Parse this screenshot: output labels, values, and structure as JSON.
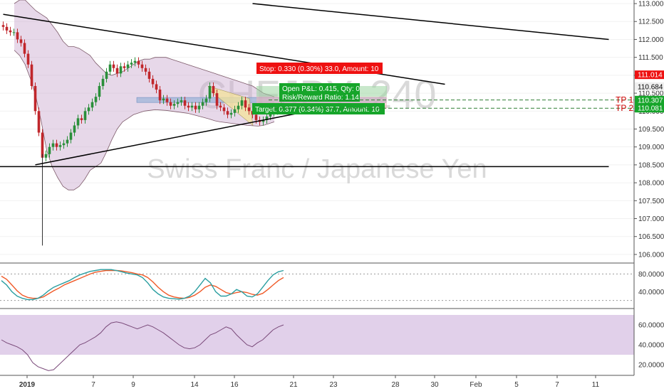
{
  "watermark": {
    "symbol": "CHFJPY",
    "interval": "240",
    "description": "Swiss Franc / Japanese Yen"
  },
  "colors": {
    "up": "#2a8f3a",
    "down": "#c0262b",
    "band_fill": "#c9a9cf",
    "band_line": "#7d5a6a",
    "trend": "#000000",
    "stoch_k": "#2a9ea0",
    "stoch_d": "#f05a28",
    "rsi_line": "#7a4a7a",
    "rsi_bg": "#dcc8e6",
    "stop_red": "#ee1111",
    "target_green": "#16a52a",
    "tp_line": "#2e7d32",
    "tp_text": "#cc0000",
    "pattern_yellow": "#f4e39a",
    "zone_blue": "#9fb6d8"
  },
  "chart_data": [
    {
      "type": "candlestick",
      "title": "",
      "price_axis": {
        "ylim": [
          105.8,
          113.1
        ],
        "ticks": [
          "113.000",
          "112.500",
          "112.000",
          "111.500",
          "111.000",
          "110.500",
          "110.000",
          "109.500",
          "109.000",
          "108.500",
          "108.000",
          "107.500",
          "107.000",
          "106.500",
          "106.000"
        ],
        "markers": [
          {
            "label": "111.014",
            "value": 111.014,
            "color": "#ee1111"
          },
          {
            "label": "110.684",
            "value": 110.684,
            "color": "#f0f0f0",
            "text_color": "#000000"
          },
          {
            "label": "110.307",
            "value": 110.307,
            "color": "#16a52a"
          },
          {
            "label": "110.081",
            "value": 110.081,
            "color": "#16a52a"
          }
        ]
      },
      "time_axis": {
        "labels": [
          "2019",
          "7",
          "9",
          "14",
          "16",
          "21",
          "23",
          "28",
          "30",
          "Feb",
          "5",
          "7",
          "11"
        ]
      },
      "series": [
        {
          "name": "CHFJPY",
          "close": [
            112.35,
            112.25,
            112.2,
            112.2,
            112.0,
            111.9,
            111.6,
            111.3,
            110.7,
            110.0,
            109.4,
            108.7,
            108.8,
            109.0,
            109.1,
            109.0,
            109.05,
            109.1,
            109.2,
            109.4,
            109.6,
            109.8,
            109.75,
            110.0,
            110.1,
            110.25,
            110.4,
            110.7,
            110.9,
            111.1,
            111.3,
            111.2,
            111.05,
            111.25,
            111.2,
            111.3,
            111.35,
            111.4,
            111.3,
            111.2,
            111.1,
            110.9,
            110.75,
            110.6,
            110.3,
            110.35,
            110.25,
            110.15,
            110.2,
            110.25,
            110.3,
            110.15,
            110.1,
            110.15,
            110.05,
            110.15,
            110.25,
            110.35,
            110.7,
            110.5,
            110.15,
            110.1,
            110.0,
            109.9,
            109.95,
            110.05,
            110.15,
            110.3,
            110.1,
            110.0,
            109.9,
            109.75,
            109.7,
            109.75,
            109.85,
            109.95,
            110.0,
            110.1,
            110.15
          ]
        }
      ],
      "bollinger_bands": {
        "upper": [
          113.0,
          113.1,
          113.1,
          112.95,
          112.8,
          112.7,
          112.6,
          112.4,
          112.2,
          111.95,
          111.8,
          111.8,
          111.75,
          111.65,
          111.55,
          111.35,
          111.2,
          111.05,
          111.0,
          111.05,
          111.1,
          111.2,
          111.3,
          111.4,
          111.45,
          111.45,
          111.5,
          111.5,
          111.5,
          111.45,
          111.4,
          111.35,
          111.3,
          111.25,
          111.2,
          111.15,
          111.1,
          111.05,
          111.0,
          110.95,
          110.9,
          110.85,
          110.8,
          110.75,
          110.7,
          110.6,
          110.5,
          110.45,
          110.4
        ],
        "lower": [
          111.7,
          111.55,
          111.3,
          110.9,
          110.4,
          109.7,
          108.9,
          108.45,
          108.15,
          107.9,
          107.8,
          107.8,
          107.9,
          108.1,
          108.35,
          108.45,
          108.55,
          108.85,
          109.2,
          109.5,
          109.7,
          109.8,
          109.9,
          109.95,
          110.0,
          110.02,
          110.04,
          110.03,
          110.02,
          110.0,
          109.98,
          109.96,
          109.94,
          109.9,
          109.86,
          109.82,
          109.78,
          109.73,
          109.7,
          109.68,
          109.66,
          109.64,
          109.62,
          109.6,
          109.59,
          109.58,
          109.6,
          109.65,
          109.7
        ]
      },
      "annotations": [
        {
          "label": "Stop: 0.330 (0.30%) 33.0, Amount: 10",
          "color": "#ee1111"
        },
        {
          "label": "Open P&L: 0.415, Qty: 0",
          "color": "#16a52a"
        },
        {
          "label": "Risk/Reward Ratio: 1.14",
          "color": "#16a52a"
        },
        {
          "label": "Target: 0.377 (0.34%) 37.7, Amount: 10",
          "color": "#16a52a"
        },
        {
          "label": "TP 1",
          "value": 110.31,
          "color": "#cc0000"
        },
        {
          "label": "TP 2",
          "value": 110.08,
          "color": "#cc0000"
        }
      ],
      "trendlines": [
        {
          "name": "upper-trendline",
          "points": [
            [
              0,
              112.7
            ],
            [
              124,
              110.75
            ]
          ]
        },
        {
          "name": "lower-trendline",
          "points": [
            [
              9,
              108.5
            ],
            [
              91,
              110.1
            ]
          ]
        },
        {
          "name": "horizontal-support",
          "points": [
            [
              -1,
              108.45
            ],
            [
              170,
              108.45
            ]
          ]
        },
        {
          "name": "long-resistance",
          "points": [
            [
              70,
              113.0
            ],
            [
              170,
              112.0
            ]
          ]
        }
      ]
    },
    {
      "type": "line",
      "title": "",
      "ylim": [
        5,
        100
      ],
      "ticks": [
        "80.0000",
        "40.0000"
      ],
      "series": [
        {
          "name": "%K",
          "values": [
            65,
            55,
            40,
            30,
            25,
            22,
            22,
            25,
            32,
            42,
            50,
            55,
            60,
            65,
            72,
            78,
            82,
            86,
            88,
            90,
            90,
            90,
            88,
            85,
            82,
            80,
            78,
            72,
            60,
            45,
            35,
            28,
            25,
            24,
            23,
            25,
            30,
            40,
            55,
            70,
            60,
            40,
            30,
            30,
            35,
            45,
            40,
            30,
            28,
            35,
            50,
            65,
            78,
            85,
            88
          ]
        },
        {
          "name": "%D",
          "values": [
            75,
            68,
            55,
            42,
            32,
            27,
            25,
            25,
            28,
            35,
            42,
            48,
            55,
            60,
            65,
            70,
            75,
            80,
            84,
            86,
            88,
            88,
            88,
            87,
            85,
            83,
            80,
            78,
            72,
            62,
            50,
            40,
            32,
            28,
            26,
            25,
            27,
            32,
            40,
            50,
            55,
            52,
            45,
            38,
            35,
            38,
            40,
            38,
            34,
            32,
            36,
            45,
            55,
            65,
            72
          ]
        }
      ]
    },
    {
      "type": "line",
      "title": "",
      "ylim": [
        10,
        75
      ],
      "ticks": [
        "60.0000",
        "40.0000",
        "20.0000"
      ],
      "series": [
        {
          "name": "RSI",
          "values": [
            45,
            42,
            40,
            38,
            35,
            30,
            22,
            18,
            16,
            14,
            15,
            20,
            25,
            30,
            35,
            40,
            42,
            45,
            48,
            52,
            58,
            62,
            63,
            62,
            60,
            58,
            56,
            58,
            60,
            58,
            55,
            52,
            48,
            44,
            40,
            37,
            36,
            37,
            40,
            45,
            50,
            52,
            55,
            58,
            56,
            50,
            45,
            40,
            38,
            42,
            45,
            50,
            55,
            58,
            60
          ]
        }
      ]
    }
  ]
}
